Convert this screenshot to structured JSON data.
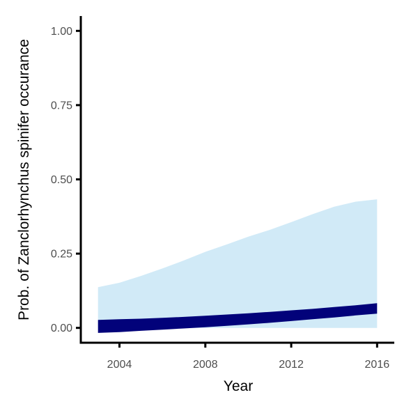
{
  "chart_data": {
    "type": "area",
    "title": "",
    "xlabel": "Year",
    "ylabel": "Prob. of  Zanclorhynchus spinifer  occurance",
    "xlim": [
      2002.2,
      2016.8
    ],
    "ylim": [
      -0.05,
      1.05
    ],
    "x_ticks": [
      2004,
      2008,
      2012,
      2016
    ],
    "x_tick_labels": [
      "2004",
      "2008",
      "2012",
      "2016"
    ],
    "y_ticks": [
      0.0,
      0.25,
      0.5,
      0.75,
      1.0
    ],
    "y_tick_labels": [
      "0.00",
      "0.25",
      "0.50",
      "0.75",
      "1.00"
    ],
    "grid": false,
    "legend": "none",
    "colors": {
      "outer_band": "#d1eaf7",
      "inner_band": "#02027a",
      "axis": "#000000"
    },
    "x": [
      2003,
      2004,
      2005,
      2006,
      2007,
      2008,
      2009,
      2010,
      2011,
      2012,
      2013,
      2014,
      2015,
      2016
    ],
    "series": [
      {
        "lower": [
          0.0,
          0.0,
          0.0,
          0.0,
          0.0,
          0.0,
          0.0,
          0.0,
          0.0,
          0.0,
          0.0,
          0.0,
          0.0,
          0.0
        ],
        "upper": [
          0.137,
          0.152,
          0.175,
          0.2,
          0.227,
          0.256,
          0.281,
          0.307,
          0.33,
          0.356,
          0.383,
          0.408,
          0.425,
          0.433
        ]
      },
      {
        "lower": [
          -0.017,
          -0.014,
          -0.01,
          -0.006,
          -0.002,
          0.002,
          0.007,
          0.012,
          0.017,
          0.023,
          0.029,
          0.035,
          0.042,
          0.048
        ],
        "upper": [
          0.027,
          0.029,
          0.031,
          0.034,
          0.037,
          0.041,
          0.045,
          0.049,
          0.054,
          0.059,
          0.064,
          0.07,
          0.076,
          0.083
        ]
      }
    ]
  }
}
